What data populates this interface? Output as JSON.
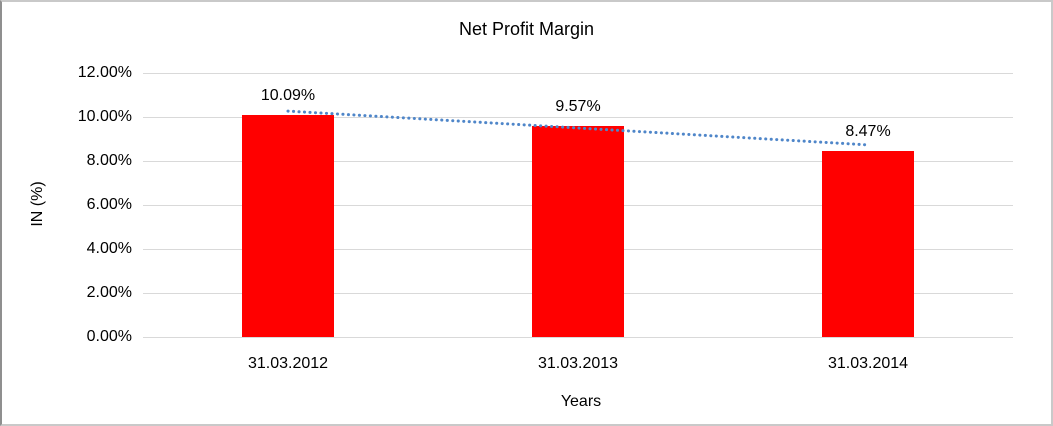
{
  "chart_data": {
    "type": "bar",
    "title": "Net Profit Margin",
    "xlabel": "Years",
    "ylabel": "IN (%)",
    "categories": [
      "31.03.2012",
      "31.03.2013",
      "31.03.2014"
    ],
    "values": [
      10.09,
      9.57,
      8.47
    ],
    "data_labels": [
      "10.09%",
      "9.57%",
      "8.47%"
    ],
    "ylim": [
      0,
      12
    ],
    "ytick_step": 2,
    "ytick_labels": [
      "0.00%",
      "2.00%",
      "4.00%",
      "6.00%",
      "8.00%",
      "10.00%",
      "12.00%"
    ],
    "grid": true,
    "legend": "none",
    "bar_color": "#ff0000",
    "gridline_color": "#d9d9d9",
    "text_color": "#000000",
    "trendline": {
      "type": "linear",
      "style": "dotted",
      "color": "#4f86c9",
      "start_value": 10.27,
      "end_value": 8.73
    }
  }
}
